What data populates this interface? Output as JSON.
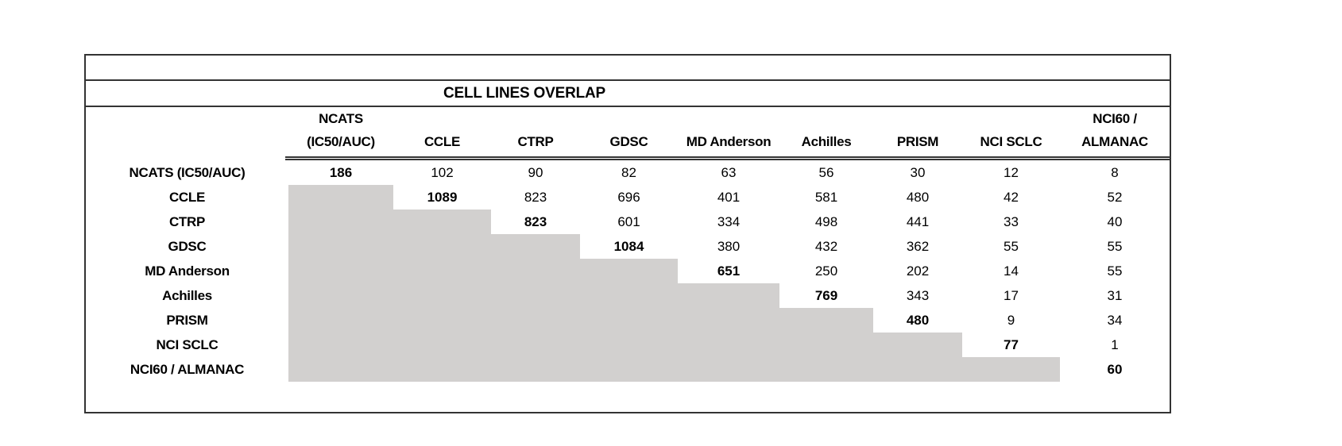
{
  "title": "CELL LINES OVERLAP",
  "table": {
    "corner_label": "",
    "columns": [
      "NCATS\n(IC50/AUC)",
      "CCLE",
      "CTRP",
      "GDSC",
      "MD Anderson",
      "Achilles",
      "PRISM",
      "NCI SCLC",
      "NCI60 /\nALMANAC"
    ],
    "rows": [
      {
        "label": "NCATS (IC50/AUC)",
        "values": [
          "186",
          "102",
          "90",
          "82",
          "63",
          "56",
          "30",
          "12",
          "8"
        ]
      },
      {
        "label": "CCLE",
        "values": [
          null,
          "1089",
          "823",
          "696",
          "401",
          "581",
          "480",
          "42",
          "52"
        ]
      },
      {
        "label": "CTRP",
        "values": [
          null,
          null,
          "823",
          "601",
          "334",
          "498",
          "441",
          "33",
          "40"
        ]
      },
      {
        "label": "GDSC",
        "values": [
          null,
          null,
          null,
          "1084",
          "380",
          "432",
          "362",
          "55",
          "55"
        ]
      },
      {
        "label": "MD Anderson",
        "values": [
          null,
          null,
          null,
          null,
          "651",
          "250",
          "202",
          "14",
          "55"
        ]
      },
      {
        "label": "Achilles",
        "values": [
          null,
          null,
          null,
          null,
          null,
          "769",
          "343",
          "17",
          "31"
        ]
      },
      {
        "label": "PRISM",
        "values": [
          null,
          null,
          null,
          null,
          null,
          null,
          "480",
          "9",
          "34"
        ]
      },
      {
        "label": "NCI SCLC",
        "values": [
          null,
          null,
          null,
          null,
          null,
          null,
          null,
          "77",
          "1"
        ]
      },
      {
        "label": "NCI60 / ALMANAC",
        "values": [
          null,
          null,
          null,
          null,
          null,
          null,
          null,
          null,
          "60"
        ]
      }
    ]
  },
  "colors": {
    "shaded_cell": "#d2d0cf",
    "border": "#333333",
    "text": "#000000",
    "background": "#ffffff"
  },
  "chart_data": {
    "type": "table",
    "title": "CELL LINES OVERLAP",
    "row_labels": [
      "NCATS (IC50/AUC)",
      "CCLE",
      "CTRP",
      "GDSC",
      "MD Anderson",
      "Achilles",
      "PRISM",
      "NCI SCLC",
      "NCI60 / ALMANAC"
    ],
    "column_labels": [
      "NCATS (IC50/AUC)",
      "CCLE",
      "CTRP",
      "GDSC",
      "MD Anderson",
      "Achilles",
      "PRISM",
      "NCI SCLC",
      "NCI60 / ALMANAC"
    ],
    "matrix": [
      [
        186,
        102,
        90,
        82,
        63,
        56,
        30,
        12,
        8
      ],
      [
        null,
        1089,
        823,
        696,
        401,
        581,
        480,
        42,
        52
      ],
      [
        null,
        null,
        823,
        601,
        334,
        498,
        441,
        33,
        40
      ],
      [
        null,
        null,
        null,
        1084,
        380,
        432,
        362,
        55,
        55
      ],
      [
        null,
        null,
        null,
        null,
        651,
        250,
        202,
        14,
        55
      ],
      [
        null,
        null,
        null,
        null,
        null,
        769,
        343,
        17,
        31
      ],
      [
        null,
        null,
        null,
        null,
        null,
        null,
        480,
        9,
        34
      ],
      [
        null,
        null,
        null,
        null,
        null,
        null,
        null,
        77,
        1
      ],
      [
        null,
        null,
        null,
        null,
        null,
        null,
        null,
        null,
        60
      ]
    ],
    "layout": {
      "shape": "upper-triangular",
      "diagonal_style": "bold",
      "below_diagonal_fill": "#d2d0cf",
      "header_divider": "double-line",
      "grid": "off"
    }
  }
}
